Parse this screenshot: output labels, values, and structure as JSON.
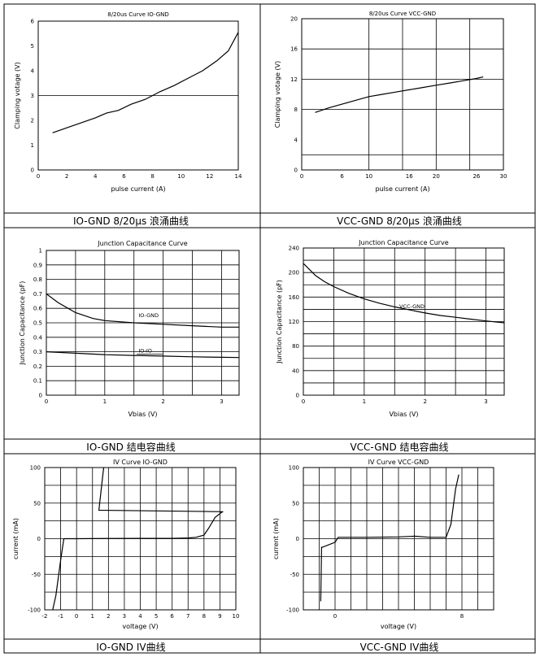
{
  "chart_data": [
    {
      "type": "line",
      "title": "8/20us Curve IO-GND",
      "caption": "IO-GND 8/20μs 浪涌曲线",
      "xlabel": "pulse current (A)",
      "ylabel": "Clamping votage (V)",
      "xlim": [
        0,
        14
      ],
      "ylim": [
        0,
        6
      ],
      "xticks": [
        0,
        2,
        4,
        6,
        8,
        10,
        12,
        14
      ],
      "yticks": [
        0,
        1,
        2,
        3,
        4,
        5,
        6
      ],
      "grid": "horizontal at 3",
      "series": [
        {
          "x": [
            1,
            2,
            3,
            4,
            4.8,
            5.6,
            6.5,
            7.5,
            8.5,
            9.5,
            10.5,
            11.5,
            12.5,
            13.3,
            14
          ],
          "y": [
            1.5,
            1.7,
            1.9,
            2.1,
            2.3,
            2.4,
            2.65,
            2.85,
            3.15,
            3.4,
            3.7,
            4.0,
            4.4,
            4.8,
            5.55
          ]
        }
      ]
    },
    {
      "type": "line",
      "title": "8/20us Curve VCC-GND",
      "caption": "VCC-GND 8/20μs 浪涌曲线",
      "xlabel": "pulse current (A)",
      "ylabel": "Clamping votage (V)",
      "xlim": [
        0,
        30
      ],
      "ylim": [
        0,
        20
      ],
      "xticks": [
        0,
        6,
        10,
        16,
        20,
        26,
        30
      ],
      "yticks": [
        0,
        4,
        8,
        12,
        16,
        20
      ],
      "grid": "vertical at 10, 15, 20, 25; horizontal at 2, 8, 12, 16",
      "series": [
        {
          "x": [
            2,
            4,
            6,
            8,
            10,
            12,
            14,
            16,
            18,
            20,
            22,
            24,
            26,
            27
          ],
          "y": [
            7.6,
            8.2,
            8.7,
            9.2,
            9.7,
            10.0,
            10.3,
            10.6,
            10.9,
            11.2,
            11.5,
            11.8,
            12.1,
            12.3
          ]
        }
      ]
    },
    {
      "type": "line",
      "title": "Junction Capacitance Curve",
      "caption": "IO-GND 结电容曲线",
      "xlabel": "Vbias (V)",
      "ylabel": "Junction Capacitance (pF)",
      "xlim": [
        0,
        3.3
      ],
      "ylim": [
        0,
        1.0
      ],
      "xticks": [
        0,
        1,
        2,
        3
      ],
      "yticks": [
        0,
        0.1,
        0.2,
        0.3,
        0.4,
        0.5,
        0.6,
        0.7,
        0.8,
        0.9,
        1.0
      ],
      "series": [
        {
          "name": "IO-GND",
          "x": [
            0,
            0.2,
            0.5,
            0.8,
            1.0,
            1.5,
            2.0,
            2.5,
            3.0,
            3.3
          ],
          "y": [
            0.7,
            0.64,
            0.57,
            0.53,
            0.515,
            0.5,
            0.49,
            0.48,
            0.47,
            0.47
          ]
        },
        {
          "name": "IO-IO",
          "x": [
            0,
            0.5,
            1.0,
            1.5,
            2.0,
            2.5,
            3.0,
            3.3
          ],
          "y": [
            0.3,
            0.29,
            0.28,
            0.275,
            0.27,
            0.265,
            0.262,
            0.26
          ]
        }
      ]
    },
    {
      "type": "line",
      "title": "Junction Capacitance Curve",
      "caption": "VCC-GND 结电容曲线",
      "xlabel": "Vbias (V)",
      "ylabel": "Junction Capacitance (pF)",
      "xlim": [
        0,
        3.3
      ],
      "ylim": [
        0,
        240
      ],
      "xticks": [
        0,
        1,
        2,
        3
      ],
      "yticks": [
        0,
        40,
        80,
        120,
        160,
        200,
        240
      ],
      "series": [
        {
          "name": "VCC-GND",
          "x": [
            0,
            0.1,
            0.2,
            0.35,
            0.5,
            0.75,
            1.0,
            1.25,
            1.5,
            1.75,
            2.0,
            2.25,
            2.5,
            2.75,
            3.0,
            3.3
          ],
          "y": [
            215,
            205,
            195,
            185,
            177,
            166,
            157,
            150,
            144,
            139,
            134,
            130,
            127,
            124,
            121,
            118
          ]
        }
      ]
    },
    {
      "type": "line",
      "title": "IV Curve IO-GND",
      "caption": "IO-GND IV曲线",
      "xlabel": "voltage (V)",
      "ylabel": "current (mA)",
      "xlim": [
        -2,
        10
      ],
      "ylim": [
        -100,
        100
      ],
      "xticks": [
        -2,
        -1,
        0,
        1,
        2,
        3,
        4,
        5,
        6,
        7,
        8,
        9,
        10
      ],
      "yticks": [
        -100,
        -50,
        0,
        50,
        100
      ],
      "series": [
        {
          "x": [
            -1.5,
            -1.3,
            -1.0,
            -0.8,
            0,
            2,
            4,
            6,
            7,
            7.5,
            8.0,
            8.3,
            8.7,
            9.1,
            9.2,
            1.4,
            1.6,
            1.7
          ],
          "y": [
            -100,
            -80,
            -30,
            0,
            0,
            0.3,
            0.5,
            0.5,
            1,
            2,
            5,
            15,
            30,
            37,
            38,
            40,
            80,
            100
          ]
        }
      ]
    },
    {
      "type": "line",
      "title": "IV Curve VCC-GND",
      "caption": "VCC-GND IV曲线",
      "xlabel": "voltage (V)",
      "ylabel": "current (mA)",
      "xlim": [
        -2,
        10
      ],
      "ylim": [
        -100,
        100
      ],
      "xticks": [
        0,
        8
      ],
      "yticks": [
        -100,
        -50,
        0,
        50,
        100
      ],
      "series": [
        {
          "x": [
            -0.9,
            -0.85,
            -0.8,
            0,
            0.2,
            2,
            4,
            5,
            6,
            7,
            7.3,
            7.6,
            7.8
          ],
          "y": [
            -88,
            -12,
            -12,
            -5,
            2,
            2,
            2.5,
            3.5,
            2,
            2,
            20,
            70,
            90
          ]
        }
      ]
    }
  ]
}
